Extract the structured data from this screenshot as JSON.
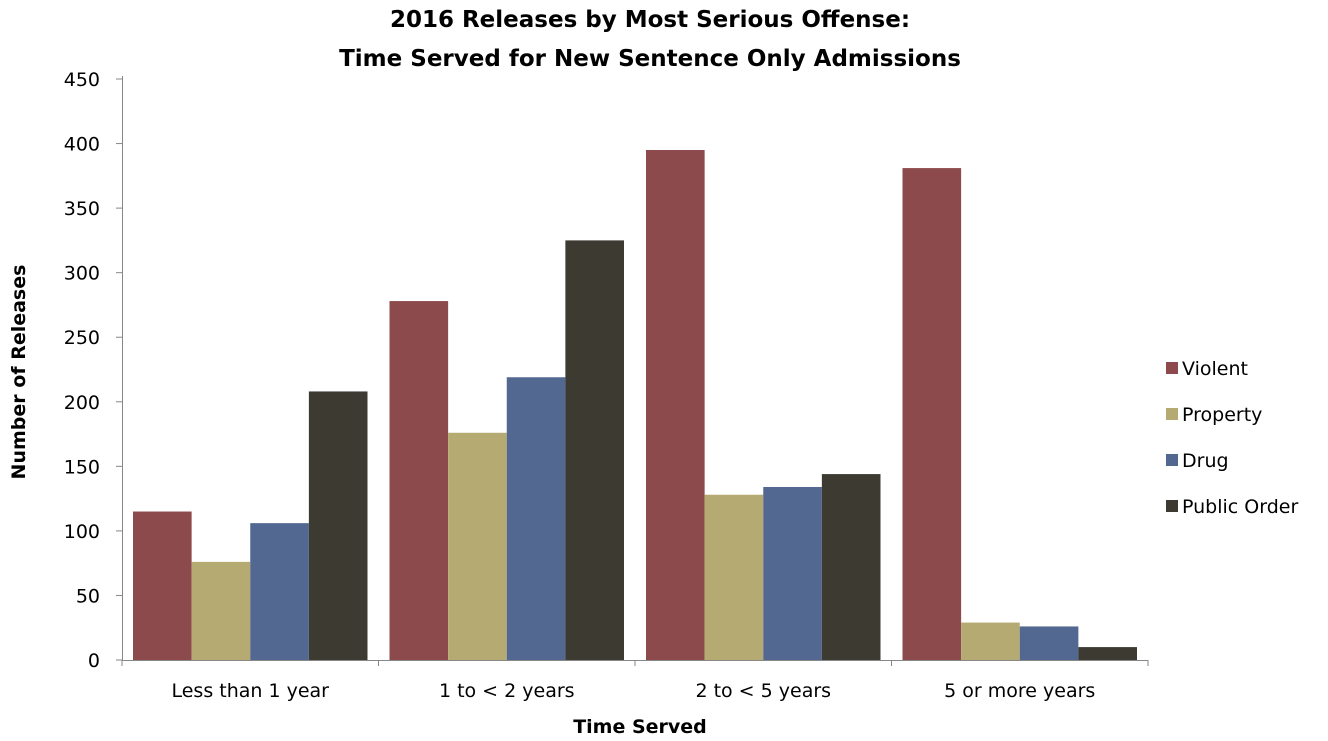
{
  "chart_data": {
    "type": "bar",
    "title_lines": [
      "2016 Releases by Most Serious Offense:",
      "Time Served for New Sentence Only Admissions"
    ],
    "xlabel": "Time Served",
    "ylabel": "Number of Releases",
    "ylim": [
      0,
      450
    ],
    "yticks": [
      0,
      50,
      100,
      150,
      200,
      250,
      300,
      350,
      400,
      450
    ],
    "categories": [
      "Less than 1 year",
      "1 to < 2 years",
      "2 to < 5 years",
      "5 or more years"
    ],
    "series": [
      {
        "name": "Violent",
        "color": "#8c4a4c",
        "values": [
          115,
          278,
          395,
          381
        ]
      },
      {
        "name": "Property",
        "color": "#b6aa73",
        "values": [
          76,
          176,
          128,
          29
        ]
      },
      {
        "name": "Drug",
        "color": "#536890",
        "values": [
          106,
          219,
          134,
          26
        ]
      },
      {
        "name": "Public Order",
        "color": "#3d3a32",
        "values": [
          208,
          325,
          144,
          10
        ]
      }
    ],
    "grid": false,
    "legend_position": "right"
  }
}
